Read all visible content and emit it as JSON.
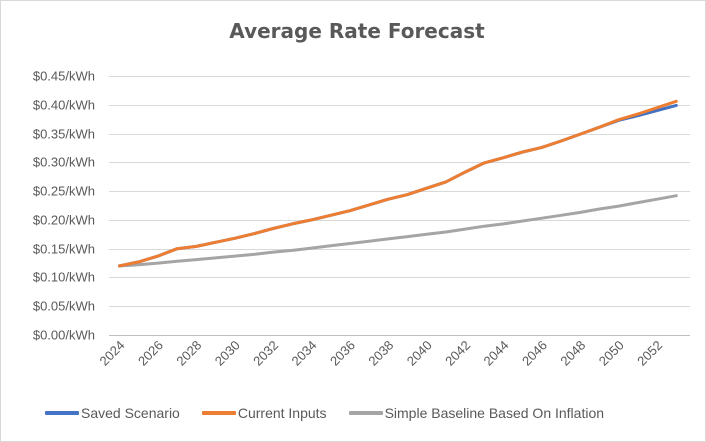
{
  "chart_data": {
    "type": "line",
    "title": "Average Rate Forecast",
    "xlabel": "",
    "ylabel": "",
    "ylim": [
      0,
      0.45
    ],
    "ytick_values": [
      0,
      0.05,
      0.1,
      0.15,
      0.2,
      0.25,
      0.3,
      0.35,
      0.4,
      0.45
    ],
    "ytick_labels": [
      "$0.00/kWh",
      "$0.05/kWh",
      "$0.10/kWh",
      "$0.15/kWh",
      "$0.20/kWh",
      "$0.25/kWh",
      "$0.30/kWh",
      "$0.35/kWh",
      "$0.40/kWh",
      "$0.45/kWh"
    ],
    "x": [
      2024,
      2025,
      2026,
      2027,
      2028,
      2029,
      2030,
      2031,
      2032,
      2033,
      2034,
      2035,
      2036,
      2037,
      2038,
      2039,
      2040,
      2041,
      2042,
      2043,
      2044,
      2045,
      2046,
      2047,
      2048,
      2049,
      2050,
      2051,
      2052,
      2053
    ],
    "xtick_labels": [
      "2024",
      "2026",
      "2028",
      "2030",
      "2032",
      "2034",
      "2036",
      "2038",
      "2040",
      "2042",
      "2044",
      "2046",
      "2048",
      "2050",
      "2052"
    ],
    "grid": true,
    "legend_position": "bottom",
    "series": [
      {
        "name": "Saved Scenario",
        "color": "#4472C4",
        "values": [
          0.12,
          0.127,
          0.137,
          0.15,
          0.154,
          0.161,
          0.168,
          0.176,
          0.185,
          0.193,
          0.2,
          0.208,
          0.216,
          0.226,
          0.236,
          0.244,
          0.255,
          0.266,
          0.283,
          0.299,
          0.308,
          0.318,
          0.326,
          0.337,
          0.349,
          0.361,
          0.373,
          0.381,
          0.39,
          0.399
        ]
      },
      {
        "name": "Current Inputs",
        "color": "#ED7D31",
        "values": [
          0.12,
          0.127,
          0.137,
          0.15,
          0.154,
          0.161,
          0.168,
          0.176,
          0.185,
          0.193,
          0.2,
          0.208,
          0.216,
          0.226,
          0.236,
          0.244,
          0.255,
          0.266,
          0.283,
          0.299,
          0.308,
          0.318,
          0.326,
          0.337,
          0.349,
          0.361,
          0.374,
          0.384,
          0.395,
          0.406
        ]
      },
      {
        "name": "Simple Baseline Based On Inflation",
        "color": "#A5A5A5",
        "values": [
          0.12,
          0.122,
          0.125,
          0.128,
          0.131,
          0.134,
          0.137,
          0.14,
          0.144,
          0.147,
          0.151,
          0.155,
          0.159,
          0.163,
          0.167,
          0.171,
          0.175,
          0.179,
          0.184,
          0.189,
          0.193,
          0.198,
          0.203,
          0.208,
          0.213,
          0.219,
          0.224,
          0.23,
          0.236,
          0.242
        ]
      }
    ]
  }
}
